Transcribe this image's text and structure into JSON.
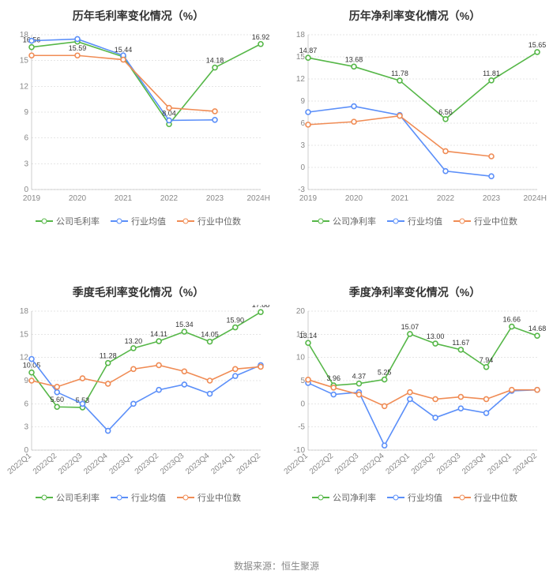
{
  "colors": {
    "green": "#56b748",
    "blue": "#5b8ff9",
    "orange": "#f08c55",
    "grid": "#cccccc",
    "axis": "#aaaaaa",
    "text": "#888888",
    "title": "#333333",
    "bg": "#ffffff"
  },
  "source_label": "数据来源：恒生聚源",
  "charts": [
    {
      "id": "c1",
      "title": "历年毛利率变化情况（%）",
      "categories": [
        "2019",
        "2020",
        "2021",
        "2022",
        "2023",
        "2024H1"
      ],
      "ylim": [
        0,
        18
      ],
      "ytick_step": 3,
      "xlabel_rotate": 0,
      "legend": [
        "公司毛利率",
        "行业均值",
        "行业中位数"
      ],
      "series": [
        {
          "name": "公司毛利率",
          "color": "green",
          "values": [
            16.56,
            17.2,
            15.44,
            7.6,
            14.18,
            16.92
          ],
          "labels": [
            {
              "i": 0,
              "v": "16.56"
            },
            {
              "i": 2,
              "v": "15.44"
            },
            {
              "i": 4,
              "v": "14.18"
            },
            {
              "i": 5,
              "v": "16.92"
            }
          ]
        },
        {
          "name": "行业均值",
          "color": "blue",
          "values": [
            17.3,
            17.5,
            15.6,
            8.04,
            8.1,
            null
          ],
          "labels": [
            {
              "i": 3,
              "v": "8.04"
            }
          ]
        },
        {
          "name": "行业中位数",
          "color": "orange",
          "values": [
            15.59,
            15.59,
            15.1,
            9.5,
            9.1,
            null
          ],
          "labels": [
            {
              "i": 1,
              "v": "15.59"
            }
          ]
        }
      ]
    },
    {
      "id": "c2",
      "title": "历年净利率变化情况（%）",
      "categories": [
        "2019",
        "2020",
        "2021",
        "2022",
        "2023",
        "2024H1"
      ],
      "ylim": [
        -3,
        18
      ],
      "ytick_step": 3,
      "xlabel_rotate": 0,
      "legend": [
        "公司净利率",
        "行业均值",
        "行业中位数"
      ],
      "series": [
        {
          "name": "公司净利率",
          "color": "green",
          "values": [
            14.87,
            13.68,
            11.78,
            6.56,
            11.81,
            15.65
          ],
          "labels": [
            {
              "i": 0,
              "v": "14.87"
            },
            {
              "i": 1,
              "v": "13.68"
            },
            {
              "i": 2,
              "v": "11.78"
            },
            {
              "i": 3,
              "v": "6.56"
            },
            {
              "i": 4,
              "v": "11.81"
            },
            {
              "i": 5,
              "v": "15.65"
            }
          ]
        },
        {
          "name": "行业均值",
          "color": "blue",
          "values": [
            7.5,
            8.3,
            7.1,
            -0.5,
            -1.2,
            null
          ],
          "labels": []
        },
        {
          "name": "行业中位数",
          "color": "orange",
          "values": [
            5.8,
            6.2,
            7.0,
            2.2,
            1.5,
            null
          ],
          "labels": []
        }
      ]
    },
    {
      "id": "c3",
      "title": "季度毛利率变化情况（%）",
      "categories": [
        "2022Q1",
        "2022Q2",
        "2022Q3",
        "2022Q4",
        "2023Q1",
        "2023Q2",
        "2023Q3",
        "2023Q4",
        "2024Q1",
        "2024Q2"
      ],
      "ylim": [
        0,
        18
      ],
      "ytick_step": 3,
      "xlabel_rotate": -45,
      "legend": [
        "公司毛利率",
        "行业均值",
        "行业中位数"
      ],
      "series": [
        {
          "name": "公司毛利率",
          "color": "green",
          "values": [
            10.05,
            5.6,
            5.53,
            11.28,
            13.2,
            14.11,
            15.34,
            14.05,
            15.9,
            17.88
          ],
          "labels": [
            {
              "i": 0,
              "v": "10.05"
            },
            {
              "i": 1,
              "v": "5.60"
            },
            {
              "i": 2,
              "v": "5.53"
            },
            {
              "i": 3,
              "v": "11.28"
            },
            {
              "i": 4,
              "v": "13.20"
            },
            {
              "i": 5,
              "v": "14.11"
            },
            {
              "i": 6,
              "v": "15.34"
            },
            {
              "i": 7,
              "v": "14.05"
            },
            {
              "i": 8,
              "v": "15.90"
            },
            {
              "i": 9,
              "v": "17.88"
            }
          ]
        },
        {
          "name": "行业均值",
          "color": "blue",
          "values": [
            11.8,
            7.5,
            6.0,
            2.5,
            6.0,
            7.8,
            8.5,
            7.3,
            9.6,
            11.0
          ],
          "labels": []
        },
        {
          "name": "行业中位数",
          "color": "orange",
          "values": [
            9.0,
            8.2,
            9.3,
            8.6,
            10.5,
            11.0,
            10.2,
            9.0,
            10.5,
            10.8
          ],
          "labels": []
        }
      ]
    },
    {
      "id": "c4",
      "title": "季度净利率变化情况（%）",
      "categories": [
        "2022Q1",
        "2022Q2",
        "2022Q3",
        "2022Q4",
        "2023Q1",
        "2023Q2",
        "2023Q3",
        "2023Q4",
        "2024Q1",
        "2024Q2"
      ],
      "ylim": [
        -10,
        20
      ],
      "ytick_step": 5,
      "xlabel_rotate": -45,
      "legend": [
        "公司净利率",
        "行业均值",
        "行业中位数"
      ],
      "series": [
        {
          "name": "公司净利率",
          "color": "green",
          "values": [
            13.14,
            3.96,
            4.37,
            5.25,
            15.07,
            13.0,
            11.67,
            7.94,
            16.66,
            14.68
          ],
          "labels": [
            {
              "i": 0,
              "v": "13.14"
            },
            {
              "i": 1,
              "v": "3.96"
            },
            {
              "i": 2,
              "v": "4.37"
            },
            {
              "i": 3,
              "v": "5.25"
            },
            {
              "i": 4,
              "v": "15.07"
            },
            {
              "i": 5,
              "v": "13.00"
            },
            {
              "i": 6,
              "v": "11.67"
            },
            {
              "i": 7,
              "v": "7.94"
            },
            {
              "i": 8,
              "v": "16.66"
            },
            {
              "i": 9,
              "v": "14.68"
            }
          ]
        },
        {
          "name": "行业均值",
          "color": "blue",
          "values": [
            4.5,
            2.0,
            2.5,
            -9.0,
            1.0,
            -3.0,
            -1.0,
            -2.0,
            2.8,
            3.0
          ],
          "labels": []
        },
        {
          "name": "行业中位数",
          "color": "orange",
          "values": [
            5.2,
            3.5,
            2.0,
            -0.5,
            2.5,
            1.0,
            1.5,
            1.0,
            3.0,
            3.0
          ],
          "labels": []
        }
      ]
    }
  ]
}
